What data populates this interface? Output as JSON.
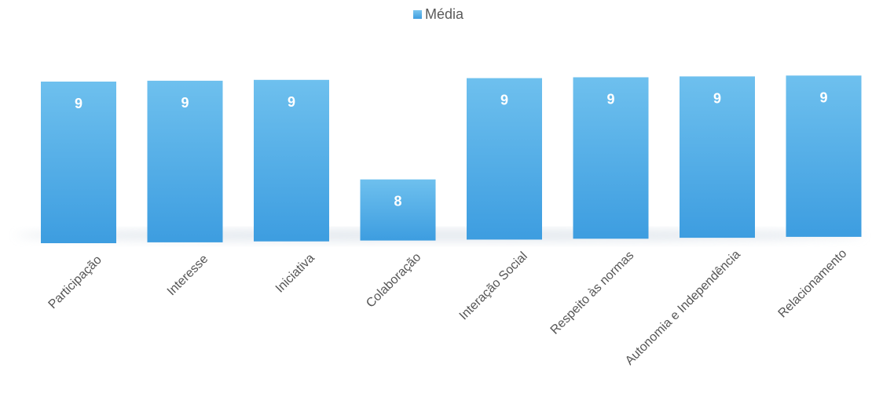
{
  "chart_data": {
    "type": "bar",
    "categories": [
      "Participação",
      "Interesse",
      "Iniciativa",
      "Colaboração",
      "Interação Social",
      "Respeito às normas",
      "Autonomia e Independência",
      "Relacionamento"
    ],
    "series": [
      {
        "name": "Média",
        "values": [
          9,
          9,
          9,
          8,
          9,
          9,
          9,
          9
        ]
      }
    ],
    "legend": "top-center",
    "grid": false,
    "colors": {
      "bar_top": "#6ec0ee",
      "bar_bottom": "#3d9de0",
      "legend_marker": "#4ea8e4"
    }
  }
}
